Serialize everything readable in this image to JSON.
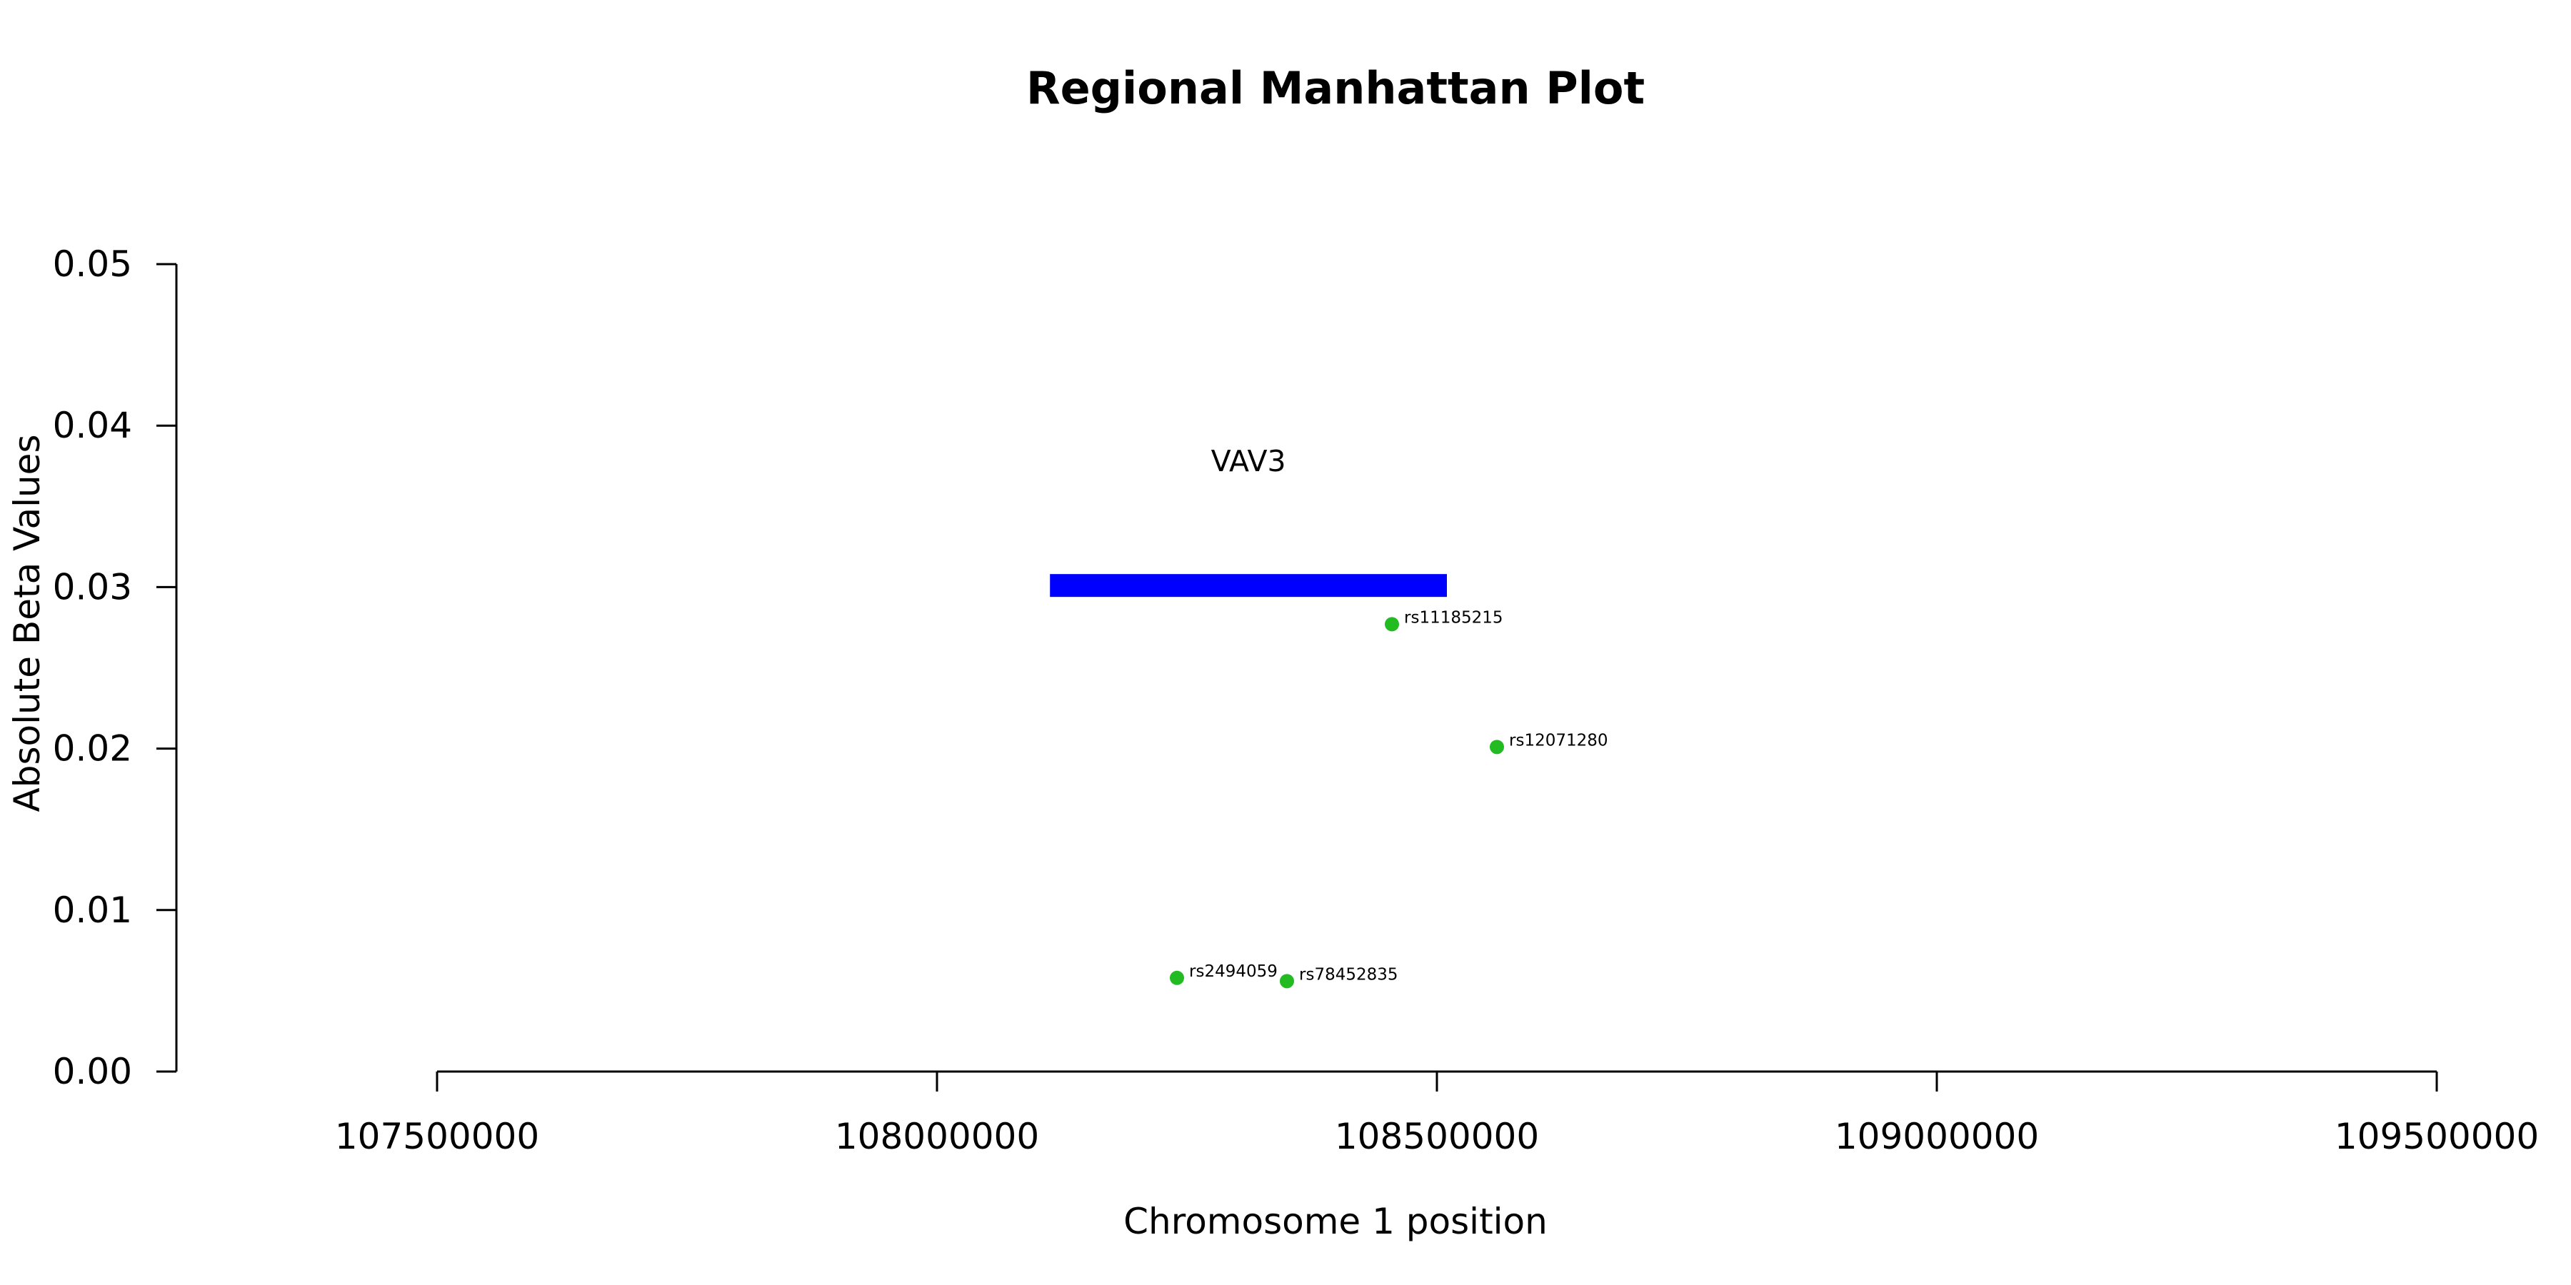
{
  "chart_data": {
    "type": "scatter",
    "title": "Regional Manhattan Plot",
    "xlabel": "Chromosome 1 position",
    "ylabel": "Absolute Beta Values",
    "xlim": [
      107500000,
      109500000
    ],
    "ylim": [
      0.0,
      0.05
    ],
    "x_ticks": [
      107500000,
      108000000,
      108500000,
      109000000,
      109500000
    ],
    "x_tick_labels": [
      "107500000",
      "108000000",
      "108500000",
      "109000000",
      "109500000"
    ],
    "y_ticks": [
      0.0,
      0.01,
      0.02,
      0.03,
      0.04,
      0.05
    ],
    "y_tick_labels": [
      "0.00",
      "0.01",
      "0.02",
      "0.03",
      "0.04",
      "0.05"
    ],
    "grid": false,
    "point_color": "#22bb22",
    "gene_color": "#0000ff",
    "points": [
      {
        "label": "rs11185215",
        "x": 108455000,
        "y": 0.0277
      },
      {
        "label": "rs12071280",
        "x": 108560000,
        "y": 0.0201
      },
      {
        "label": "rs2494059",
        "x": 108240000,
        "y": 0.0058
      },
      {
        "label": "rs78452835",
        "x": 108350000,
        "y": 0.0056
      }
    ],
    "genes": [
      {
        "name": "VAV3",
        "start": 108113000,
        "end": 108510000,
        "y": 0.0301
      }
    ]
  }
}
